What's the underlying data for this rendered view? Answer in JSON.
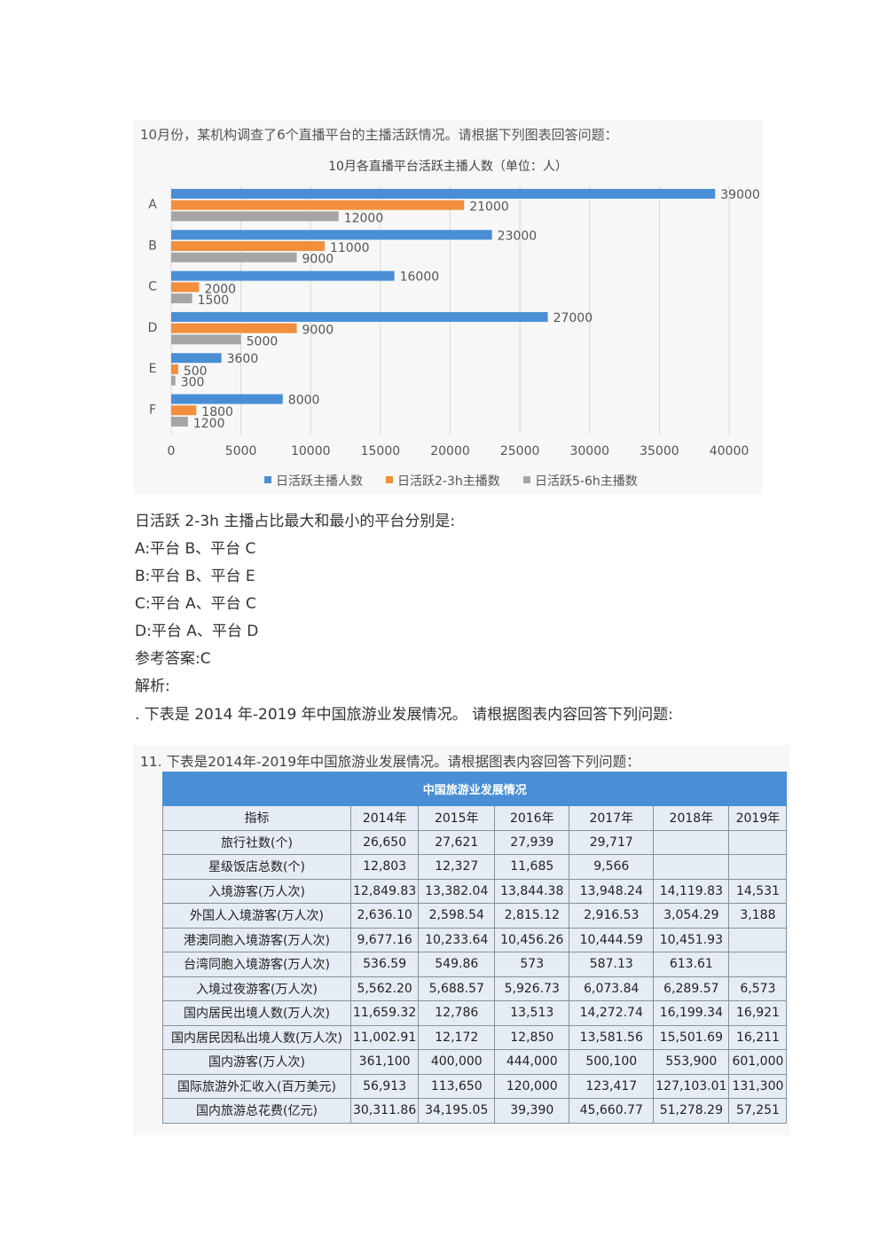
{
  "chart_block": {
    "intro": "10月份，某机构调查了6个直播平台的主播活跃情况。请根据下列图表回答问题："
  },
  "chart_data": {
    "type": "bar",
    "orientation": "horizontal",
    "title": "10月各直播平台活跃主播人数（单位：人）",
    "categories": [
      "A",
      "B",
      "C",
      "D",
      "E",
      "F"
    ],
    "series": [
      {
        "name": "日活跃主播人数",
        "color": "#4a8fd6",
        "values": [
          39000,
          23000,
          16000,
          27000,
          3600,
          8000
        ]
      },
      {
        "name": "日活跃2-3h主播数",
        "color": "#f28e3c",
        "values": [
          21000,
          11000,
          2000,
          9000,
          500,
          1800
        ]
      },
      {
        "name": "日活跃5-6h主播数",
        "color": "#a5a5a5",
        "values": [
          12000,
          9000,
          1500,
          5000,
          300,
          1200
        ]
      }
    ],
    "xlim": [
      0,
      40000
    ],
    "xticks": [
      "0",
      "5000",
      "10000",
      "15000",
      "20000",
      "25000",
      "30000",
      "35000",
      "40000"
    ],
    "grid": true,
    "legend": "bottom"
  },
  "question1": {
    "stem": "日活跃 2-3h 主播占比最大和最小的平台分别是:",
    "options": [
      "A:平台 B、平台 C",
      "B:平台 B、平台 E",
      "C:平台 A、平台 C",
      "D:平台 A、平台 D"
    ],
    "answer": "参考答案:C",
    "analysis": "解析:",
    "next": ". 下表是 2014 年-2019 年中国旅游业发展情况。 请根据图表内容回答下列问题:"
  },
  "table_block": {
    "intro": "11. 下表是2014年-2019年中国旅游业发展情况。请根据图表内容回答下列问题：",
    "title": "中国旅游业发展情况",
    "headers": [
      "指标",
      "2014年",
      "2015年",
      "2016年",
      "2017年",
      "2018年",
      "2019年"
    ],
    "rows": [
      [
        "旅行社数(个)",
        "26,650",
        "27,621",
        "27,939",
        "29,717",
        "",
        ""
      ],
      [
        "星级饭店总数(个)",
        "12,803",
        "12,327",
        "11,685",
        "9,566",
        "",
        ""
      ],
      [
        "入境游客(万人次)",
        "12,849.83",
        "13,382.04",
        "13,844.38",
        "13,948.24",
        "14,119.83",
        "14,531"
      ],
      [
        "外国人入境游客(万人次)",
        "2,636.10",
        "2,598.54",
        "2,815.12",
        "2,916.53",
        "3,054.29",
        "3,188"
      ],
      [
        "港澳同胞入境游客(万人次)",
        "9,677.16",
        "10,233.64",
        "10,456.26",
        "10,444.59",
        "10,451.93",
        ""
      ],
      [
        "台湾同胞入境游客(万人次)",
        "536.59",
        "549.86",
        "573",
        "587.13",
        "613.61",
        ""
      ],
      [
        "入境过夜游客(万人次)",
        "5,562.20",
        "5,688.57",
        "5,926.73",
        "6,073.84",
        "6,289.57",
        "6,573"
      ],
      [
        "国内居民出境人数(万人次)",
        "11,659.32",
        "12,786",
        "13,513",
        "14,272.74",
        "16,199.34",
        "16,921"
      ],
      [
        "国内居民因私出境人数(万人次)",
        "11,002.91",
        "12,172",
        "12,850",
        "13,581.56",
        "15,501.69",
        "16,211"
      ],
      [
        "国内游客(万人次)",
        "361,100",
        "400,000",
        "444,000",
        "500,100",
        "553,900",
        "601,000"
      ],
      [
        "国际旅游外汇收入(百万美元)",
        "56,913",
        "113,650",
        "120,000",
        "123,417",
        "127,103.01",
        "131,300"
      ],
      [
        "国内旅游总花费(亿元)",
        "30,311.86",
        "34,195.05",
        "39,390",
        "45,660.77",
        "51,278.29",
        "57,251"
      ]
    ]
  }
}
